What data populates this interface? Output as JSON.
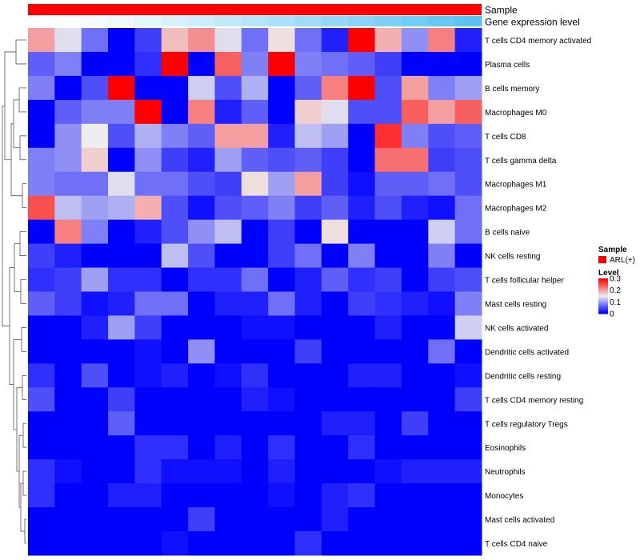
{
  "chart_data": {
    "type": "heatmap",
    "annotations": [
      {
        "name": "Sample"
      },
      {
        "name": "Gene expression level",
        "values": [
          0.0,
          0.01,
          0.02,
          0.03,
          0.05,
          0.07,
          0.09,
          0.11,
          0.13,
          0.15,
          0.17,
          0.19,
          0.21,
          0.23,
          0.25,
          0.27,
          0.29
        ]
      }
    ],
    "rows": [
      "T cells CD4 memory activated",
      "Plasma cells",
      "B cells memory",
      "Macrophages M0",
      "T cells CD8",
      "T cells gamma delta",
      "Macrophages M1",
      "Macrophages M2",
      "B cells naive",
      "NK cells resting",
      "T cells follicular helper",
      "Mast cells resting",
      "NK cells activated",
      "Dendritic cells activated",
      "Dendritic cells resting",
      "T cells CD4 memory resting",
      "T cells regulatory  Tregs",
      "Eosinophils",
      "Neutrophils",
      "Monocytes",
      "Mast cells activated",
      "T cells CD4 naive"
    ],
    "n_columns": 17,
    "values": [
      [
        0.2,
        0.14,
        0.07,
        0.0,
        0.04,
        0.18,
        0.21,
        0.14,
        0.07,
        0.16,
        0.07,
        0.02,
        0.3,
        0.19,
        0.09,
        0.22,
        0.02
      ],
      [
        0.06,
        0.08,
        0.0,
        0.0,
        0.03,
        0.3,
        0.0,
        0.24,
        0.08,
        0.3,
        0.08,
        0.07,
        0.06,
        0.04,
        0.0,
        0.0,
        0.0
      ],
      [
        0.08,
        0.0,
        0.05,
        0.3,
        0.0,
        0.0,
        0.13,
        0.05,
        0.11,
        0.0,
        0.06,
        0.22,
        0.3,
        0.05,
        0.2,
        0.08,
        0.1
      ],
      [
        0.0,
        0.06,
        0.08,
        0.08,
        0.3,
        0.0,
        0.22,
        0.02,
        0.06,
        0.0,
        0.17,
        0.14,
        0.05,
        0.05,
        0.24,
        0.2,
        0.24
      ],
      [
        0.0,
        0.09,
        0.15,
        0.05,
        0.11,
        0.08,
        0.06,
        0.2,
        0.2,
        0.02,
        0.12,
        0.1,
        0.0,
        0.27,
        0.08,
        0.05,
        0.06
      ],
      [
        0.08,
        0.09,
        0.17,
        0.0,
        0.09,
        0.04,
        0.02,
        0.1,
        0.06,
        0.05,
        0.06,
        0.04,
        0.0,
        0.23,
        0.23,
        0.04,
        0.05
      ],
      [
        0.08,
        0.07,
        0.07,
        0.14,
        0.07,
        0.07,
        0.05,
        0.04,
        0.16,
        0.1,
        0.2,
        0.04,
        0.01,
        0.06,
        0.06,
        0.07,
        0.05
      ],
      [
        0.25,
        0.12,
        0.1,
        0.11,
        0.19,
        0.05,
        0.01,
        0.05,
        0.06,
        0.08,
        0.04,
        0.06,
        0.02,
        0.05,
        0.02,
        0.01,
        0.07
      ],
      [
        0.0,
        0.22,
        0.08,
        0.0,
        0.02,
        0.05,
        0.09,
        0.12,
        0.0,
        0.04,
        0.0,
        0.16,
        0.0,
        0.0,
        0.0,
        0.13,
        0.07
      ],
      [
        0.04,
        0.02,
        0.0,
        0.0,
        0.0,
        0.12,
        0.05,
        0.0,
        0.0,
        0.04,
        0.07,
        0.0,
        0.08,
        0.0,
        0.0,
        0.08,
        0.0
      ],
      [
        0.03,
        0.04,
        0.1,
        0.03,
        0.03,
        0.0,
        0.03,
        0.03,
        0.07,
        0.0,
        0.02,
        0.06,
        0.03,
        0.04,
        0.0,
        0.04,
        0.05
      ],
      [
        0.06,
        0.04,
        0.01,
        0.02,
        0.07,
        0.07,
        0.0,
        0.02,
        0.02,
        0.07,
        0.02,
        0.0,
        0.04,
        0.03,
        0.02,
        0.01,
        0.08
      ],
      [
        0.0,
        0.0,
        0.02,
        0.1,
        0.04,
        0.0,
        0.0,
        0.0,
        0.01,
        0.01,
        0.0,
        0.0,
        0.0,
        0.02,
        0.0,
        0.0,
        0.13
      ],
      [
        0.0,
        0.0,
        0.0,
        0.0,
        0.01,
        0.0,
        0.09,
        0.0,
        0.0,
        0.0,
        0.04,
        0.0,
        0.0,
        0.0,
        0.0,
        0.07,
        0.0
      ],
      [
        0.03,
        0.0,
        0.05,
        0.0,
        0.01,
        0.02,
        0.0,
        0.01,
        0.03,
        0.0,
        0.0,
        0.0,
        0.02,
        0.02,
        0.0,
        0.0,
        0.01
      ],
      [
        0.05,
        0.0,
        0.0,
        0.04,
        0.0,
        0.0,
        0.0,
        0.0,
        0.02,
        0.01,
        0.0,
        0.0,
        0.0,
        0.0,
        0.0,
        0.0,
        0.04
      ],
      [
        0.0,
        0.0,
        0.0,
        0.06,
        0.0,
        0.0,
        0.0,
        0.0,
        0.0,
        0.0,
        0.0,
        0.02,
        0.02,
        0.0,
        0.04,
        0.0,
        0.0
      ],
      [
        0.0,
        0.0,
        0.0,
        0.0,
        0.03,
        0.03,
        0.0,
        0.02,
        0.0,
        0.03,
        0.0,
        0.0,
        0.03,
        0.0,
        0.0,
        0.0,
        0.0
      ],
      [
        0.03,
        0.01,
        0.0,
        0.0,
        0.03,
        0.01,
        0.01,
        0.01,
        0.0,
        0.02,
        0.0,
        0.0,
        0.0,
        0.01,
        0.02,
        0.02,
        0.02
      ],
      [
        0.03,
        0.0,
        0.0,
        0.02,
        0.02,
        0.0,
        0.0,
        0.0,
        0.0,
        0.01,
        0.0,
        0.02,
        0.03,
        0.0,
        0.0,
        0.0,
        0.0
      ],
      [
        0.0,
        0.0,
        0.0,
        0.0,
        0.0,
        0.0,
        0.04,
        0.0,
        0.0,
        0.0,
        0.0,
        0.02,
        0.0,
        0.0,
        0.0,
        0.0,
        0.0
      ],
      [
        0.0,
        0.0,
        0.0,
        0.0,
        0.0,
        0.01,
        0.0,
        0.0,
        0.0,
        0.0,
        0.03,
        0.0,
        0.0,
        0.0,
        0.0,
        0.0,
        0.0
      ]
    ],
    "color_scale": {
      "min": 0,
      "mid": 0.15,
      "max": 0.3,
      "low": "#0000ff",
      "midColor": "#eeeeee",
      "high": "#ff0000"
    },
    "legend": {
      "sample_title": "Sample",
      "sample_entry": "ARL(+)",
      "sample_color": "#ff0000",
      "level_title": "Level",
      "level_ticks": [
        "0.3",
        "0.2",
        "0.1",
        "0"
      ],
      "level_values": [
        0.3,
        0.2,
        0.1,
        0
      ]
    },
    "dendrogram_side": "left"
  }
}
